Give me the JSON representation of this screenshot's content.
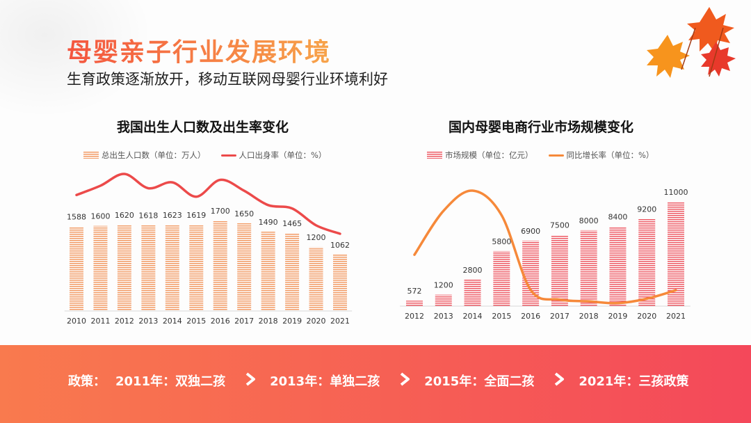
{
  "title": "母婴亲子行业发展环境",
  "subtitle": "生育政策逐渐放开，移动互联网母婴行业环境利好",
  "colors": {
    "title_start": "#f4553f",
    "title_end": "#f7a44a",
    "bar_left": "#f29a64",
    "line_left": "#ec4a4a",
    "bar_right": "#ee5a65",
    "line_right": "#f6893a",
    "banner_start": "#f97a4e",
    "banner_end": "#f4485a"
  },
  "policy": {
    "label": "政策：",
    "items": [
      "2011年：双独二孩",
      "2013年：单独二孩",
      "2015年：全面二孩",
      "2021年：三孩政策"
    ],
    "separator_icon": "chevron-right-icon"
  },
  "chart_data": [
    {
      "type": "bar",
      "title": "我国出生人口数及出生率变化",
      "legend": {
        "bar": "总出生人口数（单位：万人）",
        "line": "人口出身率（单位：%）"
      },
      "categories": [
        "2010",
        "2011",
        "2012",
        "2013",
        "2014",
        "2015",
        "2016",
        "2017",
        "2018",
        "2019",
        "2020",
        "2021"
      ],
      "series": [
        {
          "name": "总出生人口数（单位：万人）",
          "kind": "bar",
          "values": [
            1588,
            1600,
            1620,
            1618,
            1623,
            1619,
            1700,
            1650,
            1490,
            1465,
            1200,
            1062
          ]
        },
        {
          "name": "人口出身率（单位：%）",
          "kind": "line",
          "values": [
            12.1,
            13.2,
            14.6,
            12.9,
            13.6,
            11.9,
            13.9,
            12.6,
            10.9,
            10.5,
            8.5,
            7.5
          ]
        }
      ],
      "grid": false
    },
    {
      "type": "bar",
      "title": "国内母婴电商行业市场规模变化",
      "legend": {
        "bar": "市场规模（单位：亿元）",
        "line": "同比增长率（单位：%）"
      },
      "categories": [
        "2012",
        "2013",
        "2014",
        "2015",
        "2016",
        "2017",
        "2018",
        "2019",
        "2020",
        "2021"
      ],
      "series": [
        {
          "name": "市场规模（单位：亿元）",
          "kind": "bar",
          "values": [
            572,
            1200,
            2800,
            5800,
            6900,
            7500,
            8000,
            8400,
            9200,
            11000
          ]
        },
        {
          "name": "同比增长率（单位：%）",
          "kind": "line",
          "values": [
            60,
            110,
            133,
            105,
            20,
            9,
            7,
            5,
            10,
            19.6
          ]
        }
      ],
      "grid": false
    }
  ]
}
